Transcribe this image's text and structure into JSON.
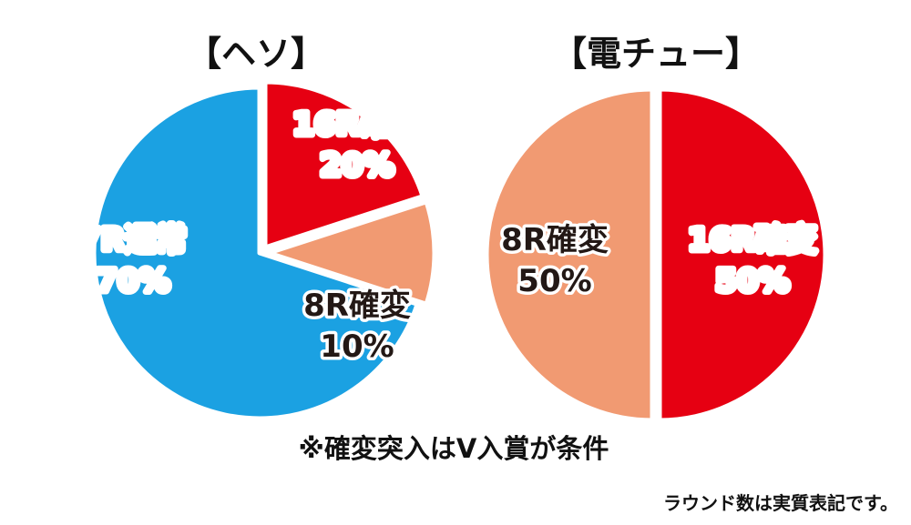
{
  "chart_data": [
    {
      "type": "pie",
      "title": "【ヘソ】",
      "slices": [
        {
          "label": "16R確変",
          "value": 20,
          "display": "20%",
          "color": "#e60012",
          "text_color": "#ffffff",
          "outline": "#e60012"
        },
        {
          "label": "8R確変",
          "value": 10,
          "display": "10%",
          "color": "#f19a72",
          "text_color": "#231815",
          "outline": "#ffffff"
        },
        {
          "label": "7R通常",
          "value": 70,
          "display": "70%",
          "color": "#1ba1e2",
          "text_color": "#ffffff",
          "outline": "#1ba1e2"
        }
      ]
    },
    {
      "type": "pie",
      "title": "【電チュー】",
      "slices": [
        {
          "label": "16R確変",
          "value": 50,
          "display": "50%",
          "color": "#e60012",
          "text_color": "#ffffff",
          "outline": "#e60012"
        },
        {
          "label": "8R確変",
          "value": 50,
          "display": "50%",
          "color": "#f19a72",
          "text_color": "#231815",
          "outline": "#ffffff"
        }
      ]
    }
  ],
  "note": "※確変突入はV入賞が条件",
  "footnote": "ラウンド数は実質表記です。"
}
